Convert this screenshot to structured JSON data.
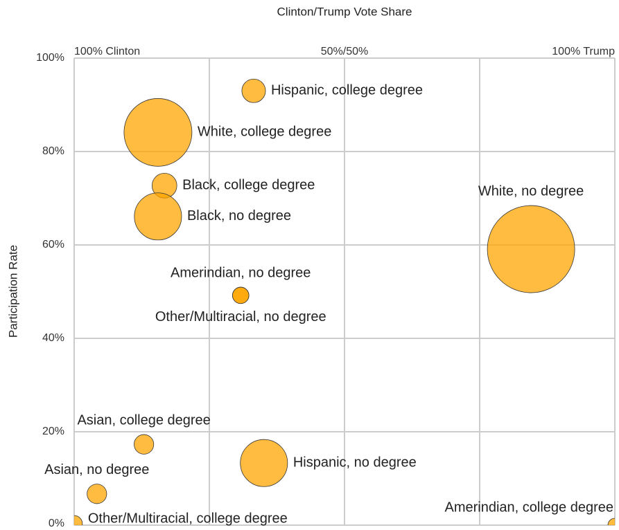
{
  "chart_data": {
    "type": "scatter",
    "title": "Clinton/Trump Vote Share",
    "ylabel": "Participation Rate",
    "xlim": [
      0,
      100
    ],
    "xticks": [
      0,
      25,
      50,
      75,
      100
    ],
    "xtick_labels": [
      {
        "value": 0,
        "label": "100% Clinton"
      },
      {
        "value": 50,
        "label": "50%/50%"
      },
      {
        "value": 100,
        "label": "100% Trump"
      }
    ],
    "ylim": [
      0,
      100
    ],
    "yticks": [
      {
        "value": 0,
        "label": "0%"
      },
      {
        "value": 20,
        "label": "20%"
      },
      {
        "value": 40,
        "label": "40%"
      },
      {
        "value": 60,
        "label": "60%"
      },
      {
        "value": 80,
        "label": "80%"
      },
      {
        "value": 100,
        "label": "100%"
      }
    ],
    "grid": true,
    "color": "#ffa500",
    "points": [
      {
        "label": "Hispanic, college degree",
        "x": 33.2,
        "y": 93.0,
        "size": 2.9
      },
      {
        "label": "White, college degree",
        "x": 15.5,
        "y": 84.1,
        "size": 24.0
      },
      {
        "label": "Black, college degree",
        "x": 16.7,
        "y": 72.7,
        "size": 3.2
      },
      {
        "label": "Black, no degree",
        "x": 15.5,
        "y": 66.1,
        "size": 11.6
      },
      {
        "label": "White, no degree",
        "x": 84.5,
        "y": 59.1,
        "size": 39.7
      },
      {
        "label": "Amerindian, no degree",
        "x": 30.8,
        "y": 49.2,
        "size": 1.4
      },
      {
        "label": "Other/Multiracial, no degree",
        "x": 30.8,
        "y": 49.2,
        "size": 1.4
      },
      {
        "label": "Asian, college degree",
        "x": 12.9,
        "y": 17.3,
        "size": 2.0
      },
      {
        "label": "Hispanic, no degree",
        "x": 35.1,
        "y": 13.3,
        "size": 11.6
      },
      {
        "label": "Asian, no degree",
        "x": 4.2,
        "y": 6.7,
        "size": 2.0
      },
      {
        "label": "Other/Multiracial, college degree",
        "x": 0,
        "y": 0.3,
        "size": 1.4
      },
      {
        "label": "Amerindian, college degree",
        "x": 100,
        "y": 0,
        "size": 1.0
      }
    ]
  }
}
